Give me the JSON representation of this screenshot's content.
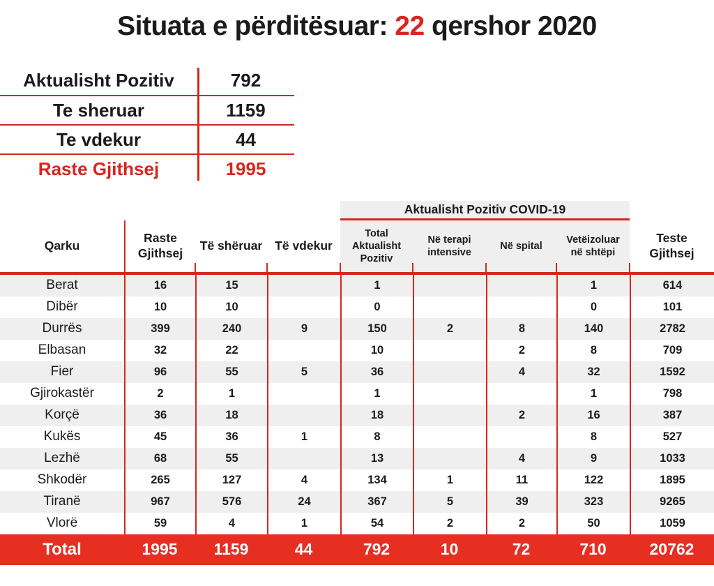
{
  "title": {
    "prefix": "Situata e përditësuar: ",
    "highlight": "22",
    "suffix": " qershor 2020"
  },
  "colors": {
    "accent_red": "#d8261e",
    "total_bar_red": "#e62e21",
    "row_alt_gray": "#efefef"
  },
  "summary": {
    "rows": [
      {
        "label": "Aktualisht Pozitiv",
        "value": "792",
        "red": false
      },
      {
        "label": "Te sheruar",
        "value": "1159",
        "red": false
      },
      {
        "label": "Te vdekur",
        "value": "44",
        "red": false
      },
      {
        "label": "Raste Gjithsej",
        "value": "1995",
        "red": true
      }
    ]
  },
  "table": {
    "group_header": "Aktualisht Pozitiv COVID-19",
    "columns": [
      "Qarku",
      "Raste\nGjithsej",
      "Të shëruar",
      "Të vdekur",
      "Total\nAktualisht\nPozitiv",
      "Në terapi\nintensive",
      "Në spital",
      "Vetëizoluar\nnë shtëpi",
      "Teste\nGjithsej"
    ],
    "rows": [
      [
        "Berat",
        "16",
        "15",
        "",
        "1",
        "",
        "",
        "1",
        "614"
      ],
      [
        "Dibër",
        "10",
        "10",
        "",
        "0",
        "",
        "",
        "0",
        "101"
      ],
      [
        "Durrës",
        "399",
        "240",
        "9",
        "150",
        "2",
        "8",
        "140",
        "2782"
      ],
      [
        "Elbasan",
        "32",
        "22",
        "",
        "10",
        "",
        "2",
        "8",
        "709"
      ],
      [
        "Fier",
        "96",
        "55",
        "5",
        "36",
        "",
        "4",
        "32",
        "1592"
      ],
      [
        "Gjirokastër",
        "2",
        "1",
        "",
        "1",
        "",
        "",
        "1",
        "798"
      ],
      [
        "Korçë",
        "36",
        "18",
        "",
        "18",
        "",
        "2",
        "16",
        "387"
      ],
      [
        "Kukës",
        "45",
        "36",
        "1",
        "8",
        "",
        "",
        "8",
        "527"
      ],
      [
        "Lezhë",
        "68",
        "55",
        "",
        "13",
        "",
        "4",
        "9",
        "1033"
      ],
      [
        "Shkodër",
        "265",
        "127",
        "4",
        "134",
        "1",
        "11",
        "122",
        "1895"
      ],
      [
        "Tiranë",
        "967",
        "576",
        "24",
        "367",
        "5",
        "39",
        "323",
        "9265"
      ],
      [
        "Vlorë",
        "59",
        "4",
        "1",
        "54",
        "2",
        "2",
        "50",
        "1059"
      ]
    ],
    "total": [
      "Total",
      "1995",
      "1159",
      "44",
      "792",
      "10",
      "72",
      "710",
      "20762"
    ]
  }
}
